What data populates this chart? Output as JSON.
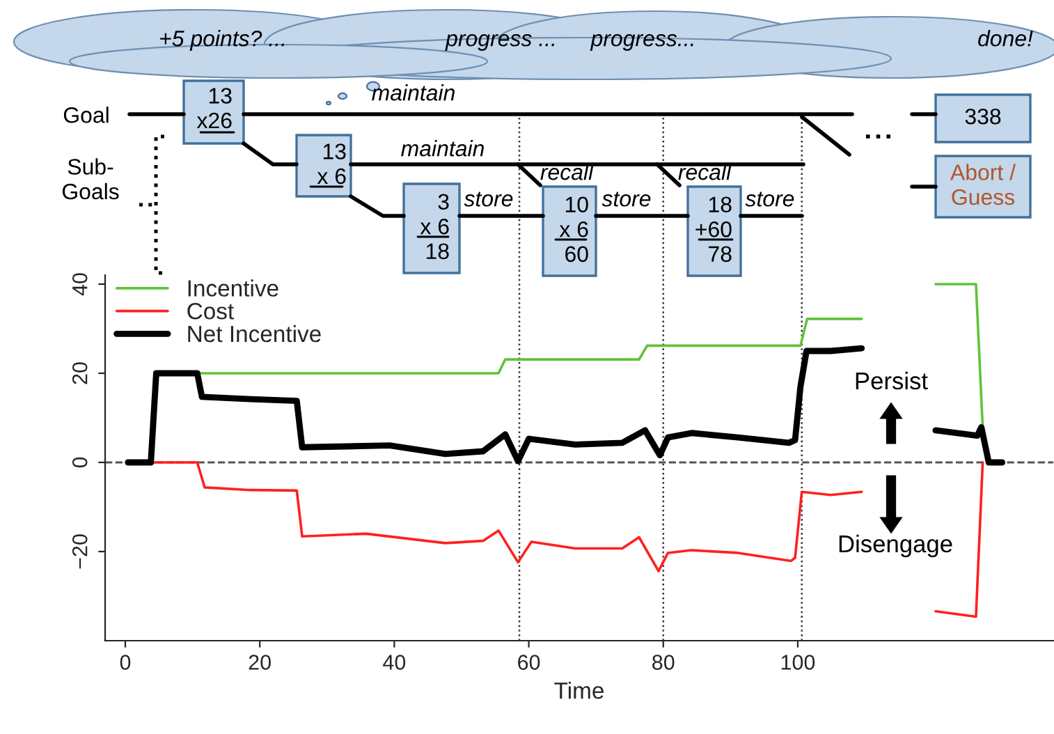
{
  "chart_data": {
    "type": "line",
    "xlabel": "Time",
    "xlim": [
      -3,
      138
    ],
    "ylim": [
      -40,
      42
    ],
    "xticks": [
      0,
      20,
      40,
      60,
      80,
      100
    ],
    "yticks": [
      {
        "value": -20,
        "label": "−20"
      },
      0,
      20,
      40
    ],
    "legend": "top left",
    "grid": false,
    "marker": "none",
    "line_style": "solid",
    "series": [
      {
        "name": "Incentive",
        "color": "#5ec43a",
        "x": [
          10.7,
          55.5,
          56.5,
          76.4,
          77.6,
          100.4,
          101.4,
          109.5,
          null,
          120.5,
          126.5,
          127.5
        ],
        "values": [
          20,
          20,
          23.1,
          23.1,
          26.2,
          26.2,
          32.2,
          32.2,
          null,
          40,
          40,
          7.9
        ]
      },
      {
        "name": "Cost",
        "color": "#ff2020",
        "x": [
          3.8,
          10.7,
          11.8,
          18.6,
          25.5,
          26.3,
          35.8,
          47.6,
          53.2,
          55.5,
          58.4,
          60.4,
          66.9,
          73.9,
          76.4,
          79.3,
          80.7,
          84.2,
          91.1,
          99,
          99.6,
          100.6,
          104.9,
          109.5,
          null,
          120.5,
          126.5,
          127.5
        ],
        "values": [
          0,
          0,
          -5.6,
          -6.2,
          -6.3,
          -16.6,
          -16,
          -18.1,
          -17.6,
          -15.3,
          -22.4,
          -17.8,
          -19.3,
          -19.3,
          -16.8,
          -24.4,
          -20.3,
          -19.7,
          -20.3,
          -22.1,
          -21.4,
          -6.6,
          -7.3,
          -6.6,
          null,
          -33.4,
          -34.6,
          0
        ]
      },
      {
        "name": "Net Incentive",
        "color": "#000000",
        "x": [
          0.4,
          3.8,
          4.6,
          10.7,
          11.4,
          18.6,
          25.5,
          26.3,
          39.3,
          47.6,
          53.2,
          56.5,
          58.4,
          60,
          66.9,
          73.9,
          77.3,
          79.5,
          80.7,
          84.2,
          91.1,
          98.7,
          99.6,
          100.4,
          101.3,
          104.9,
          109.5,
          null,
          120.5,
          126.7,
          127.3,
          128.4,
          130.4
        ],
        "values": [
          0,
          0,
          20,
          20,
          14.7,
          14.2,
          13.8,
          3.4,
          3.8,
          1.9,
          2.5,
          6.3,
          0.3,
          5.3,
          4,
          4.4,
          7.2,
          1.6,
          5.6,
          6.6,
          5.6,
          4.4,
          5,
          17,
          25,
          25,
          25.6,
          null,
          7.2,
          6,
          7.9,
          0,
          0
        ]
      }
    ],
    "ref_lines": [
      {
        "axis": "y",
        "value": 0,
        "line_style": "dashed",
        "color": "#555555"
      },
      {
        "axis": "x",
        "value": 58.6,
        "line_style": "dotted",
        "color": "#333333"
      },
      {
        "axis": "x",
        "value": 80,
        "line_style": "dotted",
        "color": "#333333"
      },
      {
        "axis": "x",
        "value": 100.6,
        "line_style": "dotted",
        "color": "#333333"
      }
    ],
    "annotations": [
      "+5 points? ...",
      "progress ...",
      "progress...",
      "done!",
      "Goal",
      "Sub-\nGoals",
      "13\nx26",
      "maintain",
      "13\nx 6",
      "maintain",
      "3\nx 6\n18",
      "store",
      "recall",
      "10\nx 6\n60",
      "store",
      "recall",
      "18\n+60\n78",
      "store",
      "338",
      "Abort /\nGuess",
      "Persist",
      "Disengage"
    ]
  }
}
